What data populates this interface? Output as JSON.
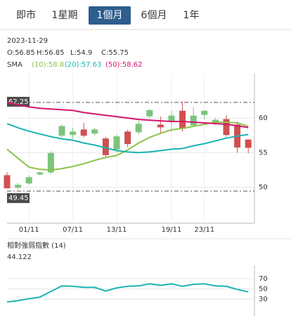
{
  "tabs": [
    "即市",
    "1星期",
    "1個月",
    "6個月",
    "1年"
  ],
  "selected_tab": 2,
  "info": {
    "date": "2023-11-29",
    "ohlc": [
      "O:56.85",
      "H:56.85",
      "L:54.9",
      "C:55.75"
    ],
    "sma_label": "SMA"
  },
  "chart_data": [
    {
      "type": "candlestick",
      "categories": [
        null,
        null,
        "01/11",
        null,
        null,
        null,
        "07/11",
        null,
        null,
        null,
        "13/11",
        null,
        null,
        null,
        null,
        "19/11",
        null,
        null,
        "23/11",
        null,
        null,
        null,
        null
      ],
      "open": [
        51.7,
        50.0,
        50.6,
        51.9,
        52.2,
        57.5,
        57.6,
        58.3,
        57.8,
        57.0,
        55.5,
        58.0,
        58.0,
        60.3,
        59.0,
        59.6,
        61.0,
        59.0,
        60.5,
        59.4,
        59.8,
        59.0,
        56.85
      ],
      "high": [
        52.2,
        50.6,
        51.7,
        52.3,
        55.2,
        59.1,
        58.6,
        59.3,
        58.6,
        57.3,
        57.6,
        58.3,
        59.6,
        61.3,
        60.2,
        61.0,
        62.4,
        61.6,
        61.2,
        60.0,
        60.4,
        59.5,
        56.85
      ],
      "low": [
        49.9,
        49.7,
        50.4,
        51.7,
        51.9,
        57.2,
        57.0,
        57.2,
        57.5,
        54.4,
        55.0,
        55.8,
        57.6,
        60.0,
        57.9,
        58.0,
        58.0,
        58.8,
        59.8,
        59.0,
        57.3,
        55.0,
        54.9
      ],
      "close": [
        49.9,
        50.3,
        51.4,
        52.1,
        54.9,
        58.8,
        58.0,
        57.5,
        58.3,
        54.7,
        57.3,
        56.3,
        59.1,
        61.1,
        58.7,
        60.3,
        58.5,
        60.3,
        61.0,
        59.7,
        57.6,
        55.8,
        55.75
      ],
      "up_color": "#7cc47c",
      "down_color": "#d05050",
      "series": [
        {
          "name": "(10):58.8",
          "color": "#8bc34a",
          "values": [
            55.5,
            54.2,
            52.9,
            52.6,
            52.5,
            52.7,
            53.0,
            53.4,
            53.9,
            54.3,
            54.6,
            55.4,
            56.4,
            57.2,
            57.8,
            58.3,
            58.5,
            58.8,
            59.1,
            59.4,
            59.4,
            59.3,
            58.8
          ]
        },
        {
          "name": "(20):57.63",
          "color": "#1ab3b3",
          "values": [
            59.2,
            58.6,
            58.1,
            57.7,
            57.3,
            57.0,
            56.8,
            56.4,
            56.1,
            55.7,
            55.3,
            55.1,
            55.0,
            55.1,
            55.3,
            55.5,
            55.6,
            56.0,
            56.3,
            56.7,
            57.1,
            57.4,
            57.63
          ]
        },
        {
          "name": "(50):58.62",
          "color": "#d6146b",
          "values": [
            62.3,
            61.9,
            61.6,
            61.4,
            61.3,
            61.2,
            61.1,
            60.8,
            60.6,
            60.4,
            60.2,
            60.0,
            59.8,
            59.7,
            59.6,
            59.5,
            59.5,
            59.4,
            59.3,
            59.2,
            59.1,
            58.9,
            58.62
          ]
        }
      ],
      "ref_lines": [
        62.25,
        49.45
      ],
      "ylim": [
        44.8,
        66.4
      ],
      "yticks": [
        50,
        55,
        60
      ],
      "grid": true
    },
    {
      "type": "line",
      "title": "相對強弱指數 (14)",
      "subtitle": "44.122",
      "series": [
        {
          "color": "#1ab3b3",
          "values": [
            24.5,
            27,
            31,
            34,
            45,
            56,
            55,
            53,
            53,
            46,
            52,
            55,
            56,
            60,
            57,
            60,
            55,
            59,
            60,
            56,
            55,
            49,
            44.1
          ]
        }
      ],
      "ylim": [
        -3,
        96
      ],
      "yticks": [
        30,
        50,
        70
      ],
      "grid": true
    }
  ]
}
